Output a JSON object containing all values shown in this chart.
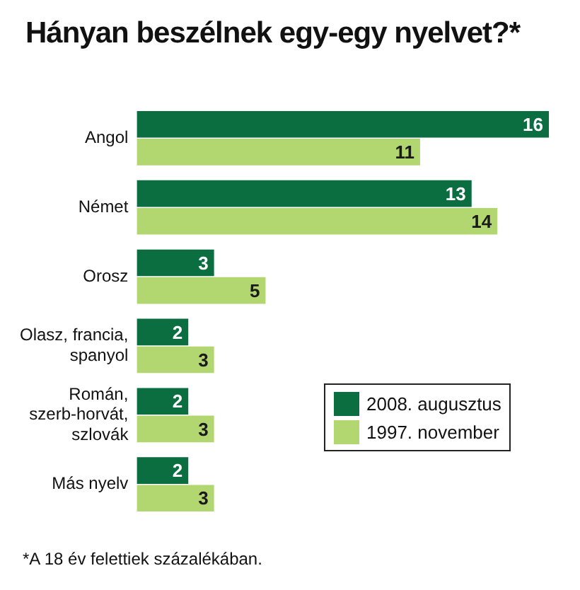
{
  "chart_data": {
    "type": "bar",
    "orientation": "horizontal",
    "title": "Hányan beszélnek egy-egy nyelvet?*",
    "categories": [
      "Angol",
      "Német",
      "Orosz",
      "Olasz, francia, spanyol",
      "Román, szerb-horvát, szlovák",
      "Más nyelv"
    ],
    "series": [
      {
        "name": "2008. augusztus",
        "color": "#0b6e40",
        "values": [
          16,
          13,
          3,
          2,
          2,
          2
        ]
      },
      {
        "name": "1997. november",
        "color": "#b2d670",
        "values": [
          11,
          14,
          5,
          3,
          3,
          3
        ]
      }
    ],
    "data_labels": true,
    "legend": "right",
    "tick_labels": "y",
    "annotations": [
      "*A 18 év felettiek százalékában."
    ]
  }
}
